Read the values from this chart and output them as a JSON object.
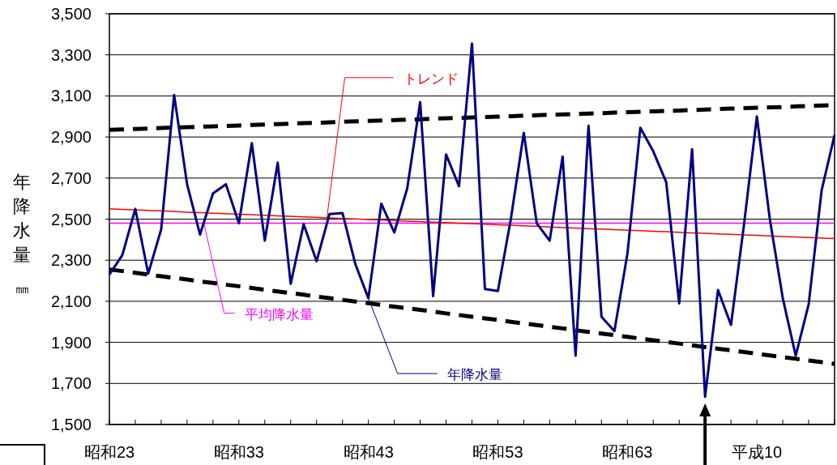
{
  "chart_data": {
    "type": "line",
    "ylabel": "年降水量㎜",
    "ylim": [
      1500,
      3500
    ],
    "yticks": [
      {
        "value": 1500,
        "label": "1,500"
      },
      {
        "value": 1700,
        "label": "1,700"
      },
      {
        "value": 1900,
        "label": "1,900"
      },
      {
        "value": 2100,
        "label": "2,100"
      },
      {
        "value": 2300,
        "label": "2,300"
      },
      {
        "value": 2500,
        "label": "2,500"
      },
      {
        "value": 2700,
        "label": "2,700"
      },
      {
        "value": 2900,
        "label": "2,900"
      },
      {
        "value": 3100,
        "label": "3,100"
      },
      {
        "value": 3300,
        "label": "3,300"
      },
      {
        "value": 3500,
        "label": "3,500"
      }
    ],
    "categories": [
      "昭和23",
      null,
      null,
      null,
      null,
      null,
      null,
      null,
      null,
      null,
      "昭和33",
      null,
      null,
      null,
      null,
      null,
      null,
      null,
      null,
      null,
      "昭和43",
      null,
      null,
      null,
      null,
      null,
      null,
      null,
      null,
      null,
      "昭和53",
      null,
      null,
      null,
      null,
      null,
      null,
      null,
      null,
      null,
      "昭和63",
      null,
      null,
      null,
      null,
      null,
      null,
      null,
      null,
      null,
      "平成10",
      null,
      null,
      null,
      null,
      null,
      null
    ],
    "series": [
      {
        "name": "年降水量",
        "color": "#000080",
        "values": [
          2230,
          2325,
          2550,
          2235,
          2450,
          3105,
          2670,
          2425,
          2625,
          2670,
          2480,
          2870,
          2395,
          2775,
          2185,
          2475,
          2295,
          2525,
          2530,
          2280,
          2115,
          2575,
          2435,
          2650,
          3070,
          2125,
          2815,
          2660,
          3355,
          2160,
          2150,
          2500,
          2920,
          2480,
          2395,
          2805,
          1835,
          2955,
          2025,
          1955,
          2330,
          2945,
          2830,
          2680,
          2090,
          2840,
          1635,
          2155,
          1985,
          2470,
          3000,
          2500,
          2115,
          1835,
          2085,
          2640,
          2910
        ]
      },
      {
        "name": "トレンド",
        "color": "#ff0000",
        "values": [
          2550,
          2547,
          2545,
          2542,
          2540,
          2537,
          2534,
          2532,
          2529,
          2527,
          2524,
          2522,
          2519,
          2516,
          2514,
          2511,
          2509,
          2506,
          2503,
          2501,
          2498,
          2496,
          2493,
          2490,
          2488,
          2485,
          2483,
          2480,
          2478,
          2475,
          2472,
          2470,
          2467,
          2465,
          2462,
          2459,
          2457,
          2454,
          2452,
          2449,
          2446,
          2444,
          2441,
          2439,
          2436,
          2433,
          2431,
          2428,
          2426,
          2423,
          2421,
          2418,
          2415,
          2413,
          2410,
          2408,
          2405
        ]
      },
      {
        "color": "#000000",
        "line_style": "dashed",
        "values": [
          2935,
          2937,
          2939,
          2941,
          2944,
          2946,
          2948,
          2950,
          2952,
          2954,
          2956,
          2959,
          2961,
          2963,
          2965,
          2967,
          2969,
          2971,
          2974,
          2976,
          2978,
          2980,
          2982,
          2984,
          2986,
          2989,
          2991,
          2993,
          2995,
          2997,
          2999,
          3001,
          3004,
          3006,
          3008,
          3010,
          3012,
          3014,
          3016,
          3019,
          3021,
          3023,
          3025,
          3027,
          3029,
          3031,
          3034,
          3036,
          3038,
          3040,
          3042,
          3044,
          3046,
          3049,
          3051,
          3053,
          3055
        ]
      },
      {
        "color": "#000000",
        "line_style": "dashed",
        "values": [
          2255,
          2247,
          2239,
          2230,
          2222,
          2214,
          2206,
          2197,
          2189,
          2181,
          2173,
          2165,
          2156,
          2148,
          2140,
          2132,
          2123,
          2115,
          2107,
          2099,
          2091,
          2082,
          2074,
          2066,
          2058,
          2050,
          2041,
          2033,
          2025,
          2017,
          2009,
          2000,
          1992,
          1984,
          1976,
          1968,
          1959,
          1951,
          1943,
          1935,
          1927,
          1918,
          1910,
          1902,
          1894,
          1886,
          1877,
          1869,
          1861,
          1853,
          1845,
          1836,
          1828,
          1820,
          1812,
          1804,
          1795
        ]
      }
    ],
    "ref_lines": [
      {
        "axis": "y",
        "value": 2480,
        "label": "平均降水量",
        "color": "#ff00ff"
      }
    ],
    "grid": "y",
    "legend": false
  }
}
